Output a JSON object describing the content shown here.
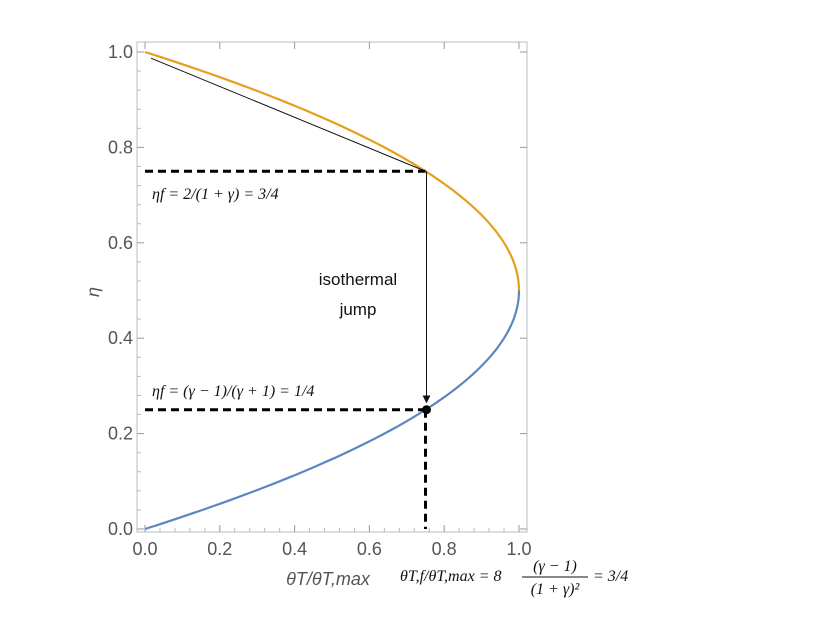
{
  "chart_data": {
    "type": "line",
    "xlabel": "θT/θT,max",
    "ylabel": "η",
    "xlim": [
      0,
      1
    ],
    "ylim": [
      0,
      1
    ],
    "xticks": [
      0,
      0.2,
      0.4,
      0.6,
      0.8,
      1
    ],
    "yticks": [
      0,
      0.2,
      0.4,
      0.6,
      0.8,
      1
    ],
    "x_tick_labels": [
      "0.0",
      "0.2",
      "0.4",
      "0.6",
      "0.8",
      "1.0"
    ],
    "y_tick_labels": [
      "0.0",
      "0.2",
      "0.4",
      "0.6",
      "0.8",
      "1.0"
    ],
    "grid": false,
    "series": [
      {
        "color": "#E69F1A",
        "relation": "x = 4η(1−η)",
        "y_range": [
          0.5,
          1.0
        ],
        "points": [
          [
            1.0,
            0.5
          ],
          [
            0.99,
            0.55
          ],
          [
            0.96,
            0.6
          ],
          [
            0.91,
            0.65
          ],
          [
            0.84,
            0.7
          ],
          [
            0.75,
            0.75
          ],
          [
            0.64,
            0.8
          ],
          [
            0.51,
            0.85
          ],
          [
            0.36,
            0.9
          ],
          [
            0.19,
            0.95
          ],
          [
            0.0,
            1.0
          ]
        ]
      },
      {
        "color": "#5C85C2",
        "relation": "x = 4η(1−η)",
        "y_range": [
          0.0,
          0.5
        ],
        "points": [
          [
            0.0,
            0.0
          ],
          [
            0.19,
            0.05
          ],
          [
            0.36,
            0.1
          ],
          [
            0.51,
            0.15
          ],
          [
            0.64,
            0.2
          ],
          [
            0.75,
            0.25
          ],
          [
            0.84,
            0.3
          ],
          [
            0.91,
            0.35
          ],
          [
            0.96,
            0.4
          ],
          [
            0.99,
            0.45
          ],
          [
            1.0,
            0.5
          ]
        ]
      }
    ],
    "annotations": {
      "tangent_line": {
        "from": [
          0.0,
          0.985
        ],
        "to": [
          0.75,
          0.75
        ],
        "color": "#111111"
      },
      "dashed_h_upper": {
        "y": 0.75,
        "x_from": 0.0,
        "x_to": 0.75
      },
      "dashed_h_lower": {
        "y": 0.25,
        "x_from": 0.0,
        "x_to": 0.75
      },
      "dashed_v": {
        "x": 0.75,
        "y_from": 0.0,
        "y_to": 0.25
      },
      "arrow": {
        "from": [
          0.75,
          0.75
        ],
        "to": [
          0.75,
          0.255
        ]
      },
      "point": {
        "x": 0.75,
        "y": 0.25
      },
      "jump_label_line1": "isothermal",
      "jump_label_line2": "jump",
      "eta_upper_label": "ηf = 2/(1 + γ) = 3/4",
      "eta_lower_label": "ηf = (γ − 1)/(γ + 1) = 1/4",
      "theta_label_left": "θT,f/θT,max = 8",
      "theta_label_num": "(γ − 1)",
      "theta_label_den": "(1 + γ)²",
      "theta_label_right": "= 3/4"
    }
  }
}
